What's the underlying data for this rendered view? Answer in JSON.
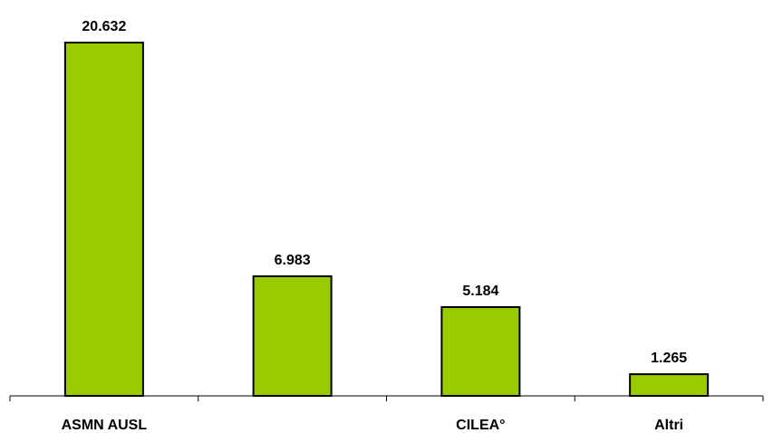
{
  "chart_data": {
    "type": "bar",
    "categories": [
      "ASMN AUSL",
      "",
      "CILEA°",
      "Altri"
    ],
    "values": [
      20632,
      6983,
      5184,
      1265
    ],
    "value_labels": [
      "20.632",
      "6.983",
      "5.184",
      "1.265"
    ],
    "title": "",
    "xlabel": "",
    "ylabel": "",
    "ylim": [
      0,
      20632
    ],
    "grid": false,
    "legend": "none",
    "bar_color": "#99cc00"
  }
}
